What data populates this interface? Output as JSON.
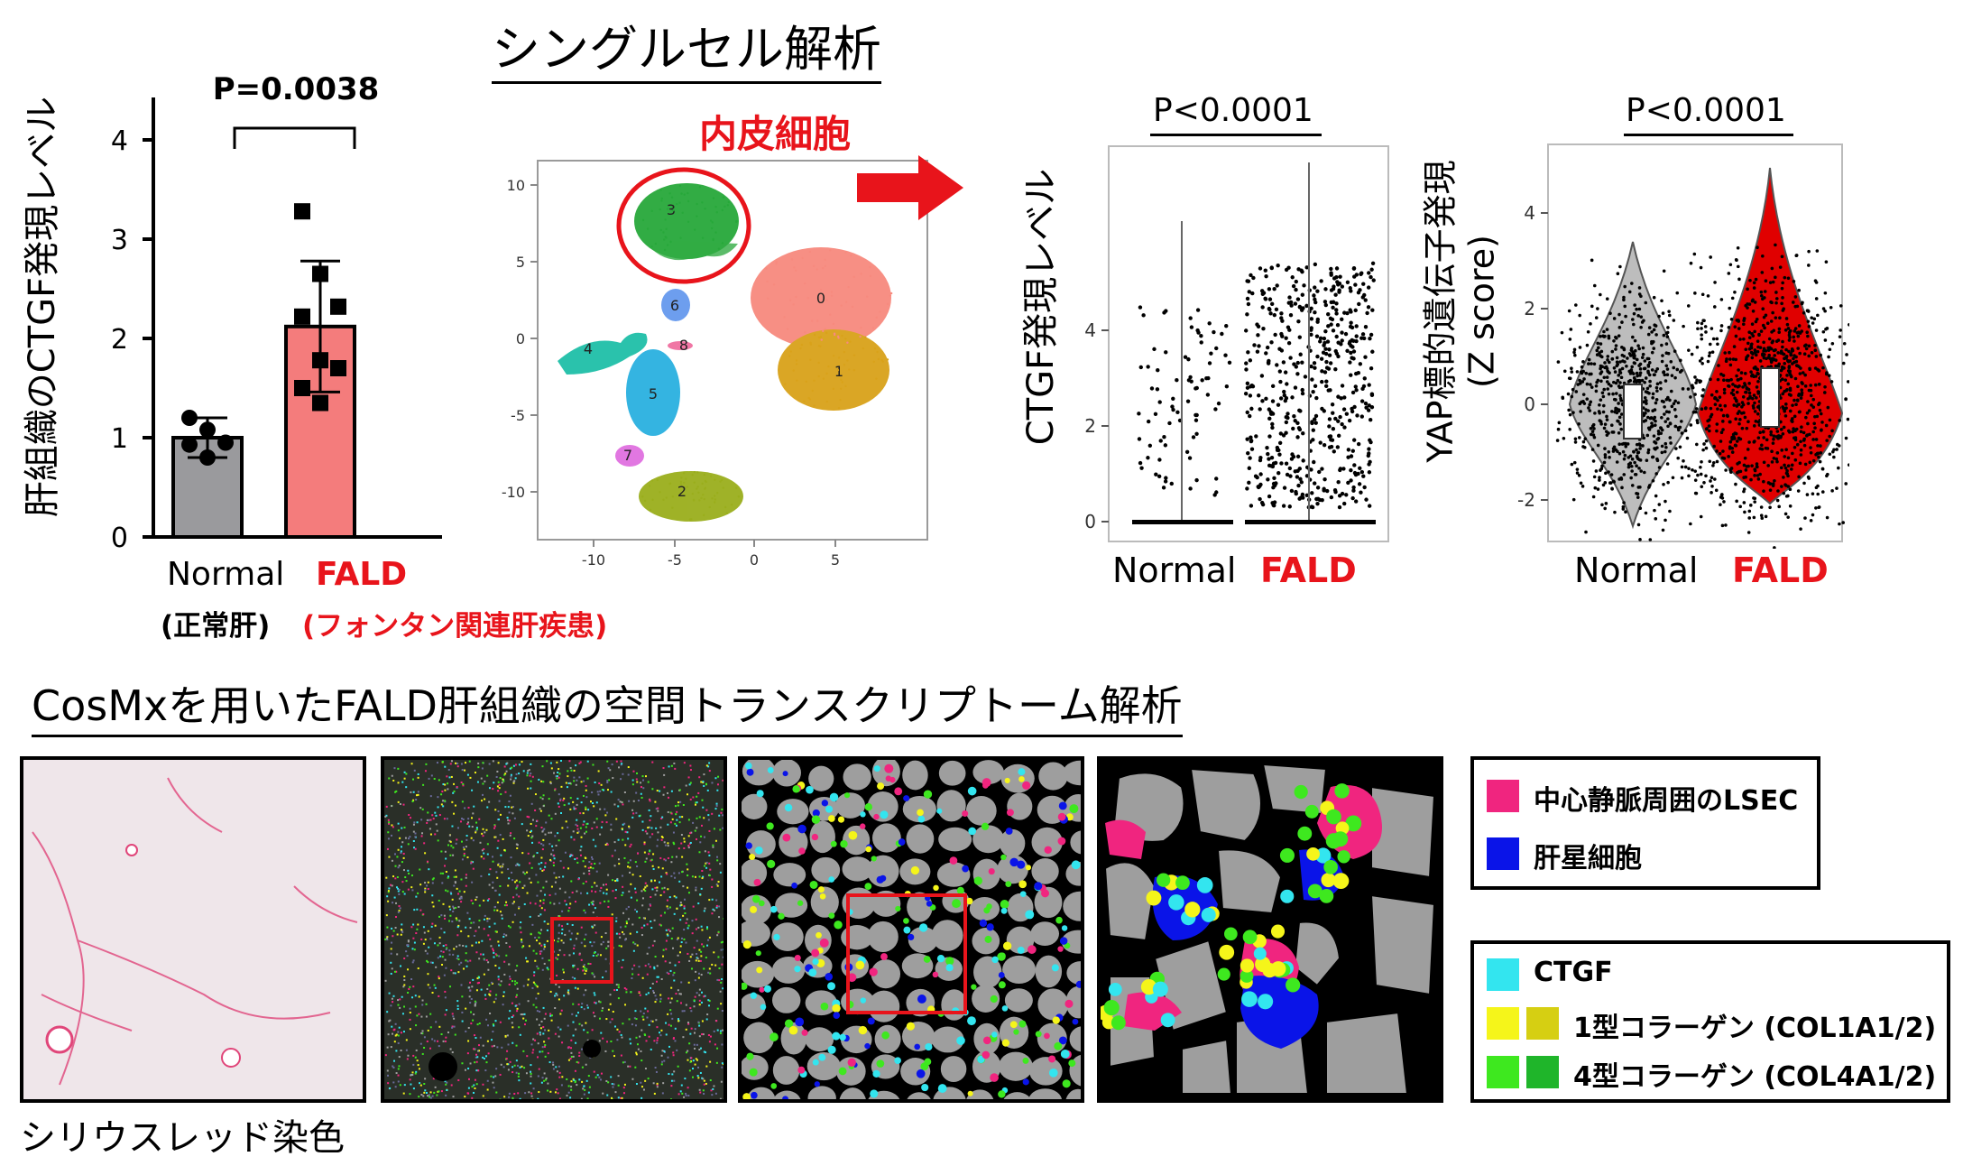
{
  "top_titles": {
    "singlecell_title": "シングルセル解析",
    "endothelial_label": "内皮細胞"
  },
  "bar_chart": {
    "ylabel": "肝組織のCTGF発現レベル",
    "pvalue": "P=0.0038",
    "ymax_tick": [
      0,
      1,
      2,
      3,
      4
    ],
    "categories": [
      {
        "label": "Normal",
        "sub": "(正常肝)",
        "color": "#9a9a9d"
      },
      {
        "label": "FALD",
        "sub": "(フォンタン関連肝疾患)",
        "color": "#f47c7c"
      }
    ]
  },
  "umap": {
    "clusters": [
      "0",
      "1",
      "2",
      "3",
      "4",
      "5",
      "6",
      "7",
      "8"
    ],
    "xticks": [
      "-10",
      "-5",
      "0",
      "5"
    ],
    "yticks": [
      "10",
      "5",
      "0",
      "-5",
      "-10"
    ]
  },
  "violin_ctgf": {
    "ylabel": "CTGF発現レベル",
    "pvalue": "P<0.0001",
    "yticks": [
      "0",
      "2",
      "4"
    ],
    "groups": [
      "Normal",
      "FALD"
    ]
  },
  "violin_yap": {
    "ylabel_line1": "YAP標的遺伝子発現",
    "ylabel_line2": "(Z score)",
    "pvalue": "P<0.0001",
    "yticks": [
      "4",
      "2",
      "0",
      "-2"
    ],
    "groups": [
      "Normal",
      "FALD"
    ],
    "colors": {
      "normal": "#bdbdbd",
      "fald": "#e00000"
    }
  },
  "chart_data": [
    {
      "type": "bar",
      "categories": [
        "Normal",
        "FALD"
      ],
      "values": [
        1.0,
        2.12
      ],
      "errors": [
        0.2,
        0.66
      ],
      "points": {
        "Normal": [
          1.2,
          1.08,
          0.95,
          0.93,
          0.8
        ],
        "FALD": [
          3.28,
          2.65,
          2.32,
          2.22,
          1.78,
          1.7,
          1.5,
          1.35
        ]
      },
      "title": "",
      "xlabel": "",
      "ylabel": "肝組織のCTGF発現レベル",
      "ylim": [
        0,
        4
      ],
      "annotation": "P=0.0038"
    }
  ],
  "cosmx": {
    "title": "CosMxを用いたFALD肝組織の空間トランスクリプトーム解析",
    "caption": "シリウスレッド染色"
  },
  "legend_cells": [
    {
      "color": "#f0257f",
      "label": "中心静脈周囲のLSEC"
    },
    {
      "color": "#0a14e8",
      "label": "肝星細胞"
    }
  ],
  "legend_genes": [
    {
      "colors": [
        "#33e5ef"
      ],
      "label": "CTGF"
    },
    {
      "colors": [
        "#f5f51a",
        "#d6cf12"
      ],
      "label": "1型コラーゲン (COL1A1/2)"
    },
    {
      "colors": [
        "#3ee81f",
        "#1fb52a"
      ],
      "label": "4型コラーゲン (COL4A1/2)"
    }
  ]
}
